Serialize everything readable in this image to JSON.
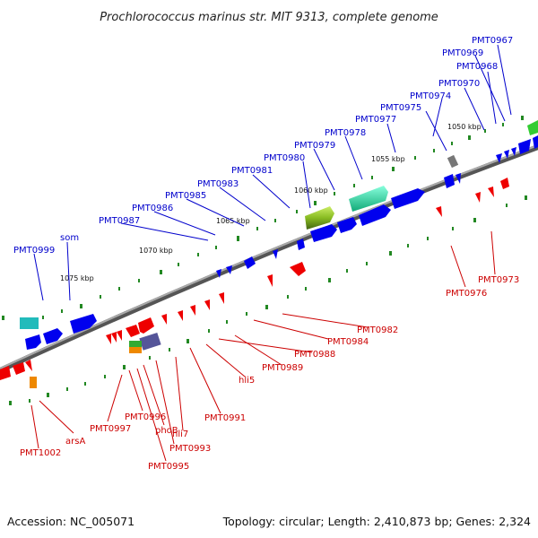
{
  "title": "Prochlorococcus marinus str. MIT 9313, complete genome",
  "footer": {
    "accession": "Accession: NC_005071",
    "summary": "Topology: circular; Length: 2,410,873 bp; Genes: 2,324"
  },
  "colors": {
    "backbone": "#808080",
    "forward_gene": "#0000ee",
    "reverse_gene": "#ee0000",
    "rna_gene": "#22ccbb",
    "ticks": "#228822",
    "top_label": "#0000cc",
    "bottom_label": "#cc0000"
  },
  "kbp_labels": [
    "1050 kbp",
    "1055 kbp",
    "1060 kbp",
    "1065 kbp",
    "1070 kbp",
    "1075 kbp"
  ],
  "top_genes": [
    "PMT0967",
    "PMT0969",
    "PMT0968",
    "PMT0970",
    "PMT0974",
    "PMT0975",
    "PMT0977",
    "PMT0978",
    "PMT0979",
    "PMT0980",
    "PMT0981",
    "PMT0983",
    "PMT0985",
    "PMT0986",
    "PMT0987",
    "som",
    "PMT0999"
  ],
  "bottom_genes": [
    "PMT0973",
    "PMT0976",
    "PMT0982",
    "PMT0984",
    "PMT0988",
    "PMT0989",
    "hli5",
    "PMT0991",
    "hli7",
    "PMT0993",
    "phoB",
    "PMT0995",
    "PMT0996",
    "PMT0997",
    "arsA",
    "PMT1002"
  ]
}
